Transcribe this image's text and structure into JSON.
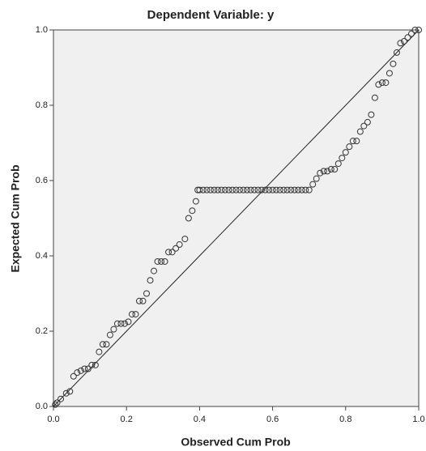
{
  "chart_data": {
    "type": "scatter",
    "title": "Dependent Variable: y",
    "x_label": "Observed Cum Prob",
    "y_label": "Expected Cum Prob",
    "x": [
      0.005,
      0.01,
      0.02,
      0.035,
      0.045,
      0.055,
      0.065,
      0.075,
      0.085,
      0.095,
      0.105,
      0.115,
      0.125,
      0.135,
      0.145,
      0.155,
      0.165,
      0.175,
      0.185,
      0.195,
      0.205,
      0.215,
      0.225,
      0.235,
      0.245,
      0.255,
      0.265,
      0.275,
      0.285,
      0.295,
      0.305,
      0.315,
      0.325,
      0.335,
      0.345,
      0.36,
      0.37,
      0.38,
      0.39,
      0.395,
      0.4,
      0.41,
      0.42,
      0.43,
      0.44,
      0.45,
      0.46,
      0.47,
      0.48,
      0.49,
      0.5,
      0.51,
      0.52,
      0.53,
      0.54,
      0.55,
      0.56,
      0.57,
      0.58,
      0.59,
      0.6,
      0.61,
      0.62,
      0.63,
      0.64,
      0.65,
      0.66,
      0.67,
      0.68,
      0.69,
      0.7,
      0.71,
      0.72,
      0.73,
      0.74,
      0.75,
      0.76,
      0.77,
      0.78,
      0.79,
      0.8,
      0.81,
      0.82,
      0.83,
      0.84,
      0.85,
      0.86,
      0.87,
      0.88,
      0.89,
      0.9,
      0.91,
      0.92,
      0.93,
      0.94,
      0.95,
      0.96,
      0.97,
      0.98,
      0.99,
      1.0
    ],
    "values": [
      0.005,
      0.01,
      0.02,
      0.035,
      0.04,
      0.08,
      0.09,
      0.095,
      0.1,
      0.1,
      0.11,
      0.11,
      0.145,
      0.165,
      0.165,
      0.19,
      0.205,
      0.22,
      0.22,
      0.22,
      0.225,
      0.245,
      0.245,
      0.28,
      0.28,
      0.3,
      0.335,
      0.36,
      0.385,
      0.385,
      0.385,
      0.41,
      0.41,
      0.42,
      0.43,
      0.445,
      0.5,
      0.52,
      0.545,
      0.575,
      0.575,
      0.575,
      0.575,
      0.575,
      0.575,
      0.575,
      0.575,
      0.575,
      0.575,
      0.575,
      0.575,
      0.575,
      0.575,
      0.575,
      0.575,
      0.575,
      0.575,
      0.575,
      0.575,
      0.575,
      0.575,
      0.575,
      0.575,
      0.575,
      0.575,
      0.575,
      0.575,
      0.575,
      0.575,
      0.575,
      0.575,
      0.59,
      0.605,
      0.62,
      0.625,
      0.625,
      0.63,
      0.63,
      0.645,
      0.66,
      0.675,
      0.69,
      0.705,
      0.705,
      0.73,
      0.745,
      0.755,
      0.775,
      0.82,
      0.855,
      0.86,
      0.86,
      0.885,
      0.91,
      0.94,
      0.965,
      0.97,
      0.98,
      0.99,
      1.0,
      1.0
    ],
    "xlim": [
      0,
      1
    ],
    "ylim": [
      0,
      1
    ],
    "xticks": [
      {
        "value": 0,
        "label": "0.0"
      },
      0.2,
      0.4,
      0.6,
      0.8,
      {
        "value": 1,
        "label": "1.0"
      }
    ],
    "yticks": [
      {
        "value": 0,
        "label": "0.0"
      },
      0.2,
      0.4,
      0.6,
      0.8,
      {
        "value": 1,
        "label": "1.0"
      }
    ],
    "color": "#333333",
    "reference_line": true
  }
}
